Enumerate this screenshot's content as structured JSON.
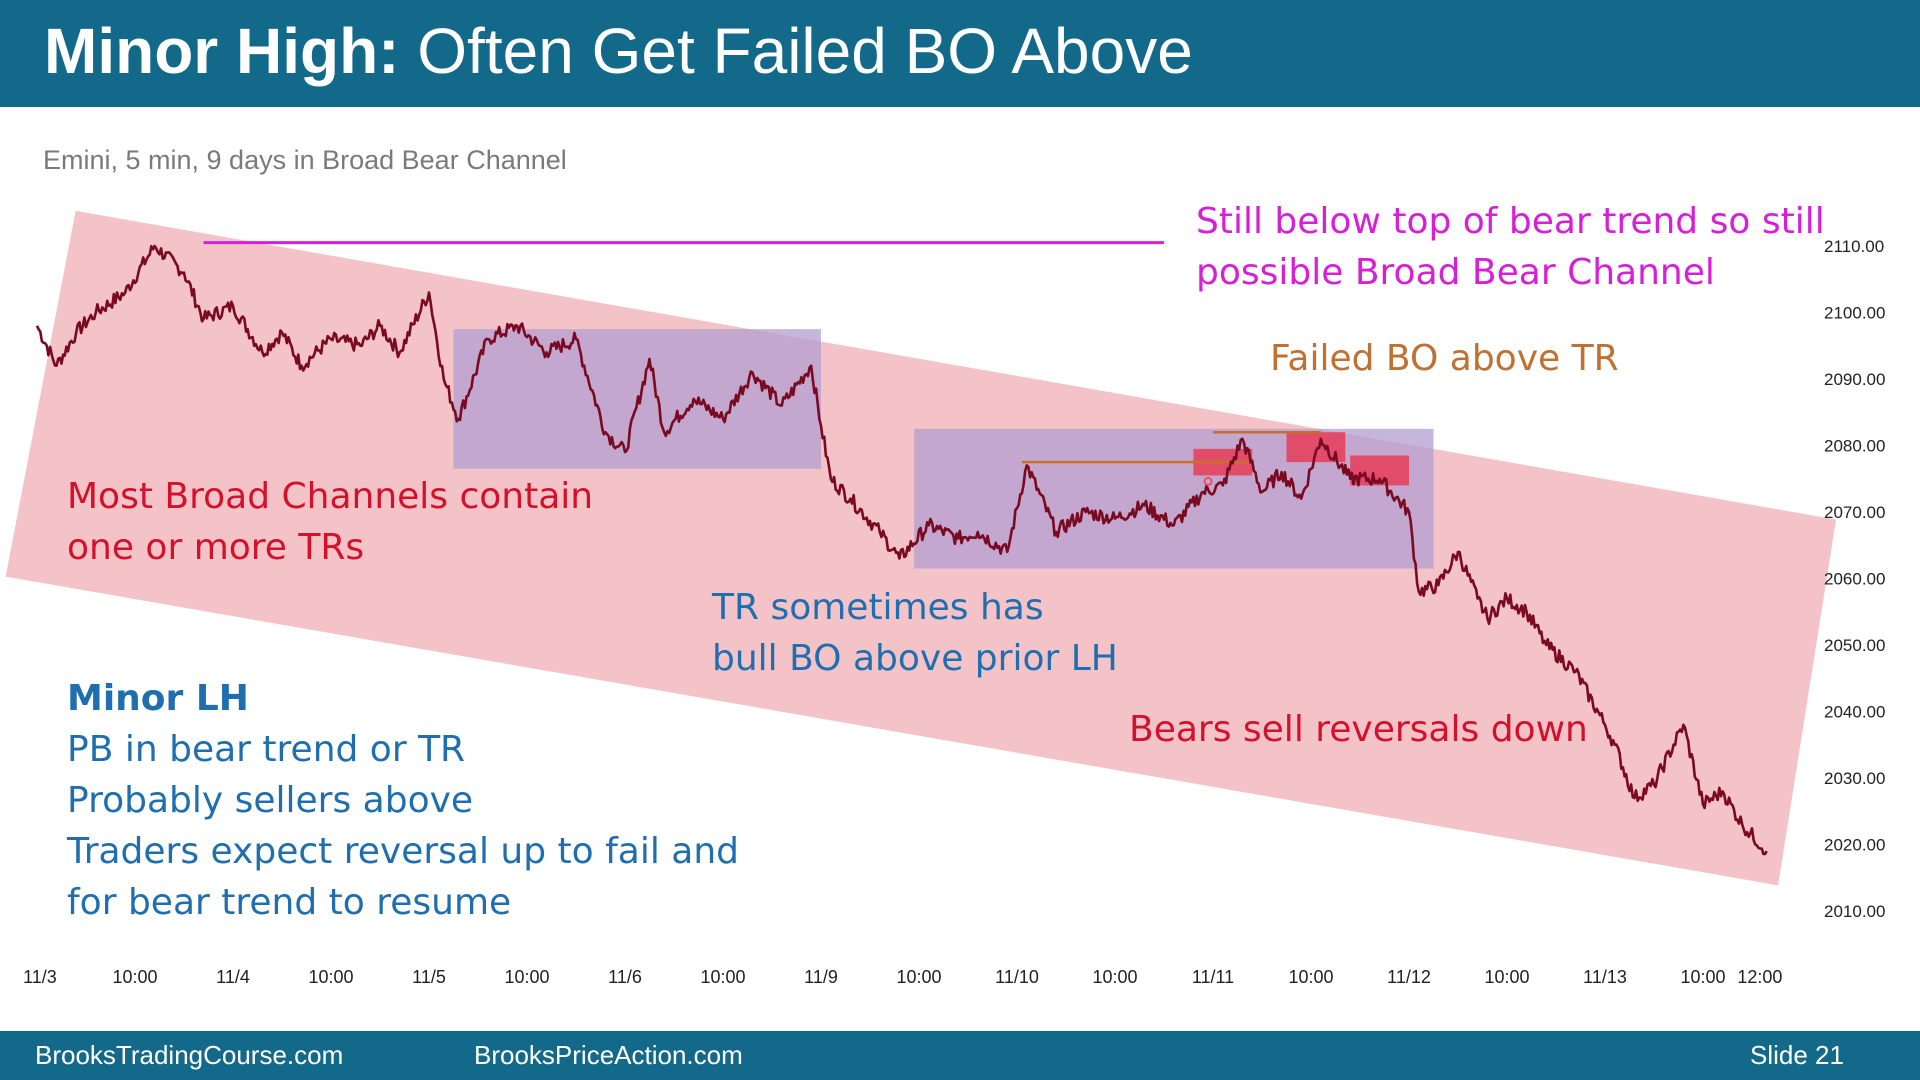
{
  "slide": {
    "title_bold": "Minor High:",
    "title_rest": "Often Get Failed BO Above",
    "subtitle": "Emini, 5 min, 9 days in Broad Bear Channel",
    "footer_left": "BrooksTradingCourse.com",
    "footer_mid": "BrooksPriceAction.com",
    "footer_right": "Slide  21"
  },
  "annotations": {
    "top_line1": "Still below top of bear trend so still",
    "top_line2": "possible Broad Bear Channel",
    "failed_bo": "Failed BO above TR",
    "broad1": "Most Broad Channels contain",
    "broad2": "one or more TRs",
    "tr1": "TR sometimes has",
    "tr2": "bull BO above prior LH",
    "bears": "Bears sell reversals down",
    "minor_head": "Minor LH",
    "minor1": "PB in bear trend or TR",
    "minor2": "Probably sellers above",
    "minor3": "Traders expect reversal up to fail and",
    "minor4": "for bear trend to resume"
  },
  "colors": {
    "header": "#13698a",
    "price": "#7a0a22",
    "channel": "#f2b8be",
    "trading_range": "#b39dd0",
    "high_line": "#d81fd8",
    "lh_line": "#c8702a",
    "bo_box": "#e8364f"
  },
  "chart_data": {
    "type": "line",
    "title": "",
    "instrument": "Emini, 5 min",
    "y_ticks": [
      "2010.00",
      "2020.00",
      "2030.00",
      "2040.00",
      "2050.00",
      "2060.00",
      "2070.00",
      "2080.00",
      "2090.00",
      "2100.00",
      "2110.00"
    ],
    "ylim": [
      2006,
      2118
    ],
    "x_ticks": [
      "11/3",
      "10:00",
      "11/4",
      "10:00",
      "11/5",
      "10:00",
      "11/6",
      "10:00",
      "11/9",
      "10:00",
      "11/10",
      "10:00",
      "11/11",
      "10:00",
      "11/12",
      "10:00",
      "11/13",
      "10:00",
      "12:00"
    ],
    "x_tick_index": [
      0.3,
      10,
      20,
      30,
      40,
      50,
      60,
      70,
      80,
      90,
      100,
      110,
      120,
      130,
      140,
      150,
      160,
      170,
      175.8
    ],
    "xlim": [
      0,
      180
    ],
    "series": [
      {
        "x": [
          0,
          2,
          4,
          6,
          9,
          12,
          15,
          17,
          20,
          23,
          25,
          27,
          30,
          33,
          35,
          37,
          40,
          41.5,
          43,
          46,
          49,
          52,
          55,
          58,
          60,
          62.5,
          64,
          67,
          70,
          73,
          76,
          79,
          80,
          81,
          83,
          86,
          88,
          91,
          94,
          96,
          99,
          101,
          104,
          107,
          110,
          113,
          116,
          119,
          121,
          123,
          125,
          127,
          129,
          131,
          134,
          137,
          140,
          141,
          143,
          145,
          147,
          148,
          150,
          152,
          154,
          157,
          160,
          161,
          163,
          165,
          168,
          170,
          172,
          174,
          176.5
        ],
        "values": [
          2098,
          2092,
          2097,
          2100,
          2103,
          2110,
          2106,
          2099,
          2101,
          2094,
          2097,
          2092,
          2096,
          2095,
          2098,
          2094,
          2103,
          2090,
          2084,
          2096,
          2098,
          2094,
          2096,
          2082,
          2079,
          2093,
          2082,
          2087,
          2084,
          2091,
          2086,
          2092,
          2083,
          2075,
          2072,
          2067,
          2063,
          2068,
          2066,
          2067,
          2064,
          2077,
          2067,
          2070,
          2069,
          2071,
          2068,
          2073,
          2074,
          2081,
          2073,
          2076,
          2072,
          2081,
          2075,
          2075,
          2070,
          2058,
          2059,
          2064,
          2057,
          2054,
          2057,
          2055,
          2050,
          2046,
          2038,
          2035,
          2027,
          2029,
          2038,
          2026,
          2028,
          2023,
          2019
        ]
      }
    ],
    "channel": {
      "upper": [
        [
          0,
          2114.5
        ],
        [
          180,
          2070
        ]
      ],
      "lower": [
        [
          0,
          2059.5
        ],
        [
          180,
          2015
        ]
      ]
    },
    "trading_ranges": [
      {
        "x0": 42.5,
        "x1": 80,
        "y0": 2076.5,
        "y1": 2097.5
      },
      {
        "x0": 89.5,
        "x1": 142.5,
        "y0": 2061.5,
        "y1": 2082.5
      }
    ],
    "reference_lines": [
      {
        "name": "prior high",
        "x0": 17,
        "x1": 115,
        "y": 2110.5
      },
      {
        "name": "prior LH",
        "x0": 100.5,
        "x1": 124,
        "y": 2077.5
      },
      {
        "name": "LH 2",
        "x0": 120,
        "x1": 131,
        "y": 2082
      }
    ],
    "bo_boxes": [
      {
        "x0": 118,
        "x1": 124,
        "y0": 2075.5,
        "y1": 2079.5
      },
      {
        "x0": 127.5,
        "x1": 133.5,
        "y0": 2077.5,
        "y1": 2082
      },
      {
        "x0": 134,
        "x1": 140,
        "y0": 2074,
        "y1": 2078.5
      }
    ],
    "grid": false,
    "legend": "none"
  }
}
